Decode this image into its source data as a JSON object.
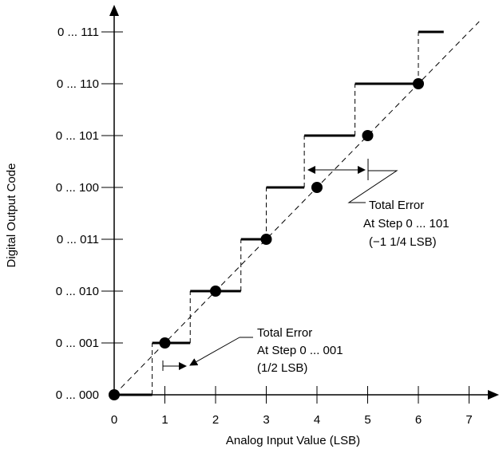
{
  "x_axis": {
    "title": "Analog Input Value (LSB)",
    "ticks": [
      "0",
      "1",
      "2",
      "3",
      "4",
      "5",
      "6",
      "7"
    ]
  },
  "y_axis": {
    "title": "Digital Output Code",
    "ticks": [
      "0 ... 000",
      "0 ... 001",
      "0 ... 010",
      "0 ... 011",
      "0 ... 100",
      "0 ... 101",
      "0 ... 110",
      "0 ... 111"
    ]
  },
  "transfer_steps": [
    {
      "code": 0,
      "from": 0,
      "to": 0.75
    },
    {
      "code": 1,
      "from": 0.75,
      "to": 1.5
    },
    {
      "code": 2,
      "from": 1.5,
      "to": 2.5
    },
    {
      "code": 3,
      "from": 2.5,
      "to": 3.0
    },
    {
      "code": 4,
      "from": 3.0,
      "to": 3.75
    },
    {
      "code": 5,
      "from": 3.75,
      "to": 4.75
    },
    {
      "code": 6,
      "from": 4.75,
      "to": 6.0
    },
    {
      "code": 7,
      "from": 6.0,
      "to": 6.5
    }
  ],
  "ideal_points": [
    {
      "x": 0,
      "code": 0
    },
    {
      "x": 1,
      "code": 1
    },
    {
      "x": 2,
      "code": 2
    },
    {
      "x": 3,
      "code": 3
    },
    {
      "x": 4,
      "code": 4
    },
    {
      "x": 5,
      "code": 5
    },
    {
      "x": 6,
      "code": 6
    }
  ],
  "annotations": {
    "error_low": {
      "line1": "Total Error",
      "line2": "At Step 0 ... 001",
      "line3": "(1/2 LSB)"
    },
    "error_high": {
      "line1": "Total Error",
      "line2": "At Step 0 ... 101",
      "line3": "(−1 1/4 LSB)"
    }
  }
}
